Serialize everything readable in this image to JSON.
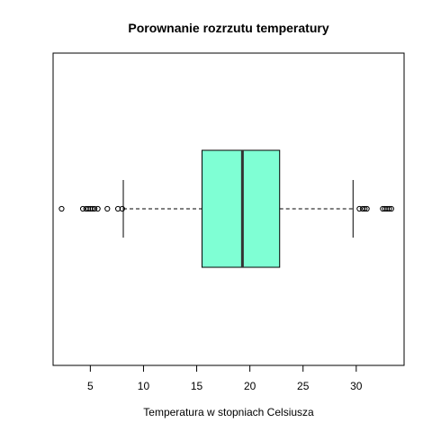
{
  "chart_data": {
    "type": "boxplot",
    "orientation": "horizontal",
    "title": "Porownanie rozrzutu  temperatury",
    "xlabel": "Temperatura w stopniach Celsiusza",
    "ylabel": "",
    "xlim": [
      1.5,
      34.5
    ],
    "xticks": [
      5,
      10,
      15,
      20,
      25,
      30
    ],
    "xtick_labels": [
      "5",
      "10",
      "15",
      "20",
      "25",
      "30"
    ],
    "box_color": "#7FFFD4",
    "grid": false,
    "stats": {
      "whisker_low": 8.1,
      "q1": 15.5,
      "median": 19.3,
      "q3": 22.8,
      "whisker_high": 29.7
    },
    "outliers": [
      2.3,
      4.3,
      4.6,
      4.8,
      5.0,
      5.2,
      5.4,
      5.7,
      6.6,
      7.6,
      8.0,
      30.3,
      30.6,
      30.8,
      31.0,
      32.5,
      32.7,
      32.9,
      33.1,
      33.3
    ]
  }
}
